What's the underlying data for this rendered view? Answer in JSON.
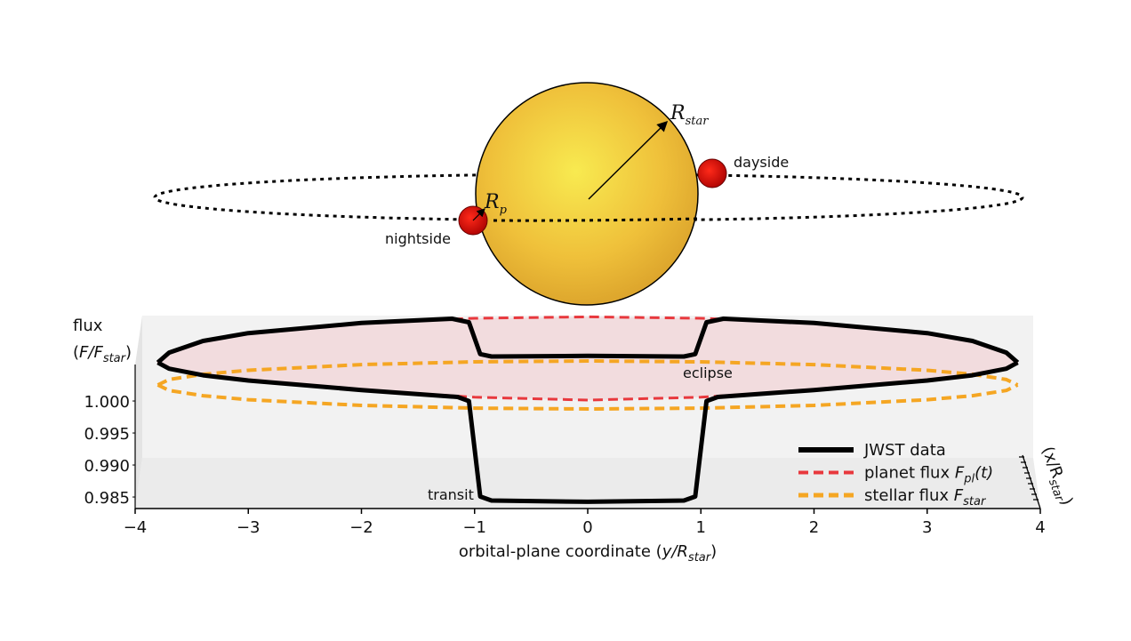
{
  "diagram": {
    "star_radius": [
      "R",
      "star"
    ],
    "planet_radius": [
      "R",
      "p"
    ],
    "dayside": "dayside",
    "nightside": "nightside"
  },
  "chart_data": {
    "type": "line",
    "xlabel": [
      "orbital-plane coordinate (",
      "y/R",
      "star",
      ")"
    ],
    "ylabel": [
      "flux",
      "(",
      "F/F",
      "star",
      ")"
    ],
    "zlabel": [
      "(x/R",
      "star",
      ")"
    ],
    "annotations": {
      "eclipse": "eclipse",
      "transit": "transit"
    },
    "xlim": [
      -4,
      4
    ],
    "xticks": [
      {
        "value": -4,
        "label": "−4"
      },
      {
        "value": -3,
        "label": "−3"
      },
      {
        "value": -2,
        "label": "−2"
      },
      {
        "value": -1,
        "label": "−1"
      },
      0,
      1,
      2,
      3,
      4
    ],
    "ylim": [
      0.9832,
      1.0057
    ],
    "yticks": [
      0.985,
      {
        "value": 0.99,
        "label": "0.990"
      },
      0.995,
      {
        "value": 1,
        "label": "1.000"
      }
    ],
    "series": [
      {
        "name": [
          "JWST data"
        ],
        "color": "#000000",
        "front": {
          "x": [
            -3.8,
            -3.7,
            -3.4,
            -3,
            -2,
            -1.15,
            -1.05,
            -0.95,
            -0.85,
            0,
            0.85,
            0.95,
            1.05,
            1.15,
            2,
            3,
            3.4,
            3.7,
            3.8
          ],
          "values": [
            1.0035,
            1.0034,
            1.0032,
            1.003,
            1.0024,
            1.0017,
            1.0011,
            0.9862,
            0.9856,
            0.9855,
            0.9856,
            0.9862,
            1.0011,
            1.0017,
            1.0024,
            1.003,
            1.0032,
            1.0034,
            1.0035
          ]
        },
        "back": {
          "x": [
            -3.8,
            -3.7,
            -3.4,
            -3,
            -2,
            -1.2,
            -1.05,
            -0.95,
            -0.85,
            0,
            0.85,
            0.95,
            1.05,
            1.2,
            2,
            3,
            3.4,
            3.7,
            3.8
          ],
          "values": [
            1.0035,
            1.0042,
            1.0052,
            1.0058,
            1.0065,
            1.0068,
            1.0062,
            1.0012,
            1.0008,
            1.0008,
            1.0008,
            1.0012,
            1.0062,
            1.0068,
            1.0065,
            1.0058,
            1.0052,
            1.0042,
            1.0035
          ]
        }
      },
      {
        "name": [
          "planet flux ",
          "F",
          "pl",
          "(t)"
        ],
        "color": "#e8383d",
        "front": {
          "x": [
            -3.8,
            -3.7,
            -3.4,
            -3,
            -2,
            -1,
            0,
            1,
            2,
            3,
            3.4,
            3.7,
            3.8
          ],
          "values": [
            1.0035,
            1.0034,
            1.0032,
            1.003,
            1.0024,
            1.0017,
            1.0014,
            1.0017,
            1.0024,
            1.003,
            1.0032,
            1.0034,
            1.0035
          ]
        },
        "back": {
          "x": [
            -3.8,
            -3.7,
            -3.4,
            -3,
            -2,
            -1,
            0,
            1,
            2,
            3,
            3.4,
            3.7,
            3.8
          ],
          "values": [
            1.0035,
            1.0042,
            1.0052,
            1.0058,
            1.0065,
            1.0068,
            1.0069,
            1.0068,
            1.0065,
            1.0058,
            1.0052,
            1.0042,
            1.0035
          ]
        }
      },
      {
        "name": [
          "stellar flux ",
          "F",
          "star"
        ],
        "color": "#f5a623",
        "front": {
          "x": [
            -3.8,
            -3.7,
            -3.4,
            -3,
            -2,
            -1,
            0,
            1,
            2,
            3,
            3.4,
            3.7,
            3.8
          ],
          "values": [
            1,
            1,
            1,
            1,
            1,
            1,
            1,
            1,
            1,
            1,
            1,
            1,
            1
          ]
        },
        "back": {
          "x": [
            -3.8,
            -3.7,
            -3.4,
            -3,
            -2,
            -1,
            0,
            1,
            2,
            3,
            3.4,
            3.7,
            3.8
          ],
          "values": [
            1,
            1,
            1,
            1,
            1,
            1,
            1,
            1,
            1,
            1,
            1,
            1,
            1
          ]
        }
      }
    ]
  }
}
